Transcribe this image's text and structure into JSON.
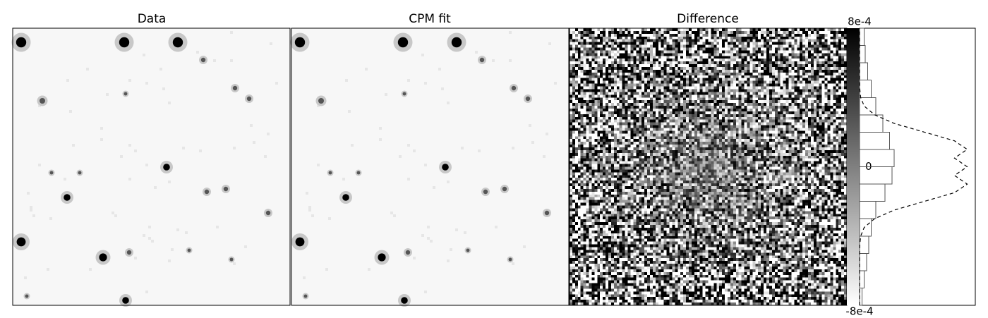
{
  "chart_data": [
    {
      "type": "image",
      "title": "Data"
    },
    {
      "type": "image",
      "title": "CPM fit"
    },
    {
      "type": "image",
      "title": "Difference"
    },
    {
      "type": "histogram",
      "orientation": "horizontal",
      "ylim": [
        -0.0008,
        0.0008
      ],
      "yticks": [
        {
          "value": 0.0008,
          "label": "8e-4"
        },
        0,
        {
          "value": -0.0008,
          "label": "-8e-4"
        }
      ],
      "xlim": [
        0,
        100
      ],
      "bins": [
        -0.0008,
        -0.0007,
        -0.0006,
        -0.0005,
        -0.0004,
        -0.0003,
        -0.0002,
        -0.0001,
        0,
        0.0001,
        0.0002,
        0.0003,
        0.0004,
        0.0005,
        0.0006,
        0.0007,
        0.0008
      ],
      "values": [
        2,
        4,
        6,
        8,
        10,
        14,
        22,
        28,
        30,
        26,
        20,
        14,
        10,
        7,
        5,
        4
      ],
      "color": "#555555",
      "fit": {
        "x": [
          -0.0008,
          -0.00075,
          -0.0007,
          -0.00065,
          -0.0006,
          -0.00055,
          -0.0005,
          -0.00045,
          -0.0004,
          -0.00035,
          -0.0003,
          -0.00025,
          -0.0002,
          -0.00015,
          -0.0001,
          -5e-05,
          0,
          5e-05,
          0.0001,
          0.00015,
          0.0002,
          0.00025,
          0.0003,
          0.00035,
          0.0004,
          0.00045,
          0.0005,
          0.00055,
          0.0006,
          0.00065,
          0.0007,
          0.00075,
          0.0008
        ],
        "values": [
          0,
          0,
          0,
          0,
          0,
          0,
          0,
          0.2,
          1,
          4,
          13,
          30,
          56,
          82,
          93,
          82,
          93,
          82,
          93,
          82,
          56,
          30,
          13,
          4,
          1,
          0.2,
          0,
          0,
          0,
          0,
          0,
          0,
          0
        ],
        "color": "#000000"
      }
    }
  ]
}
